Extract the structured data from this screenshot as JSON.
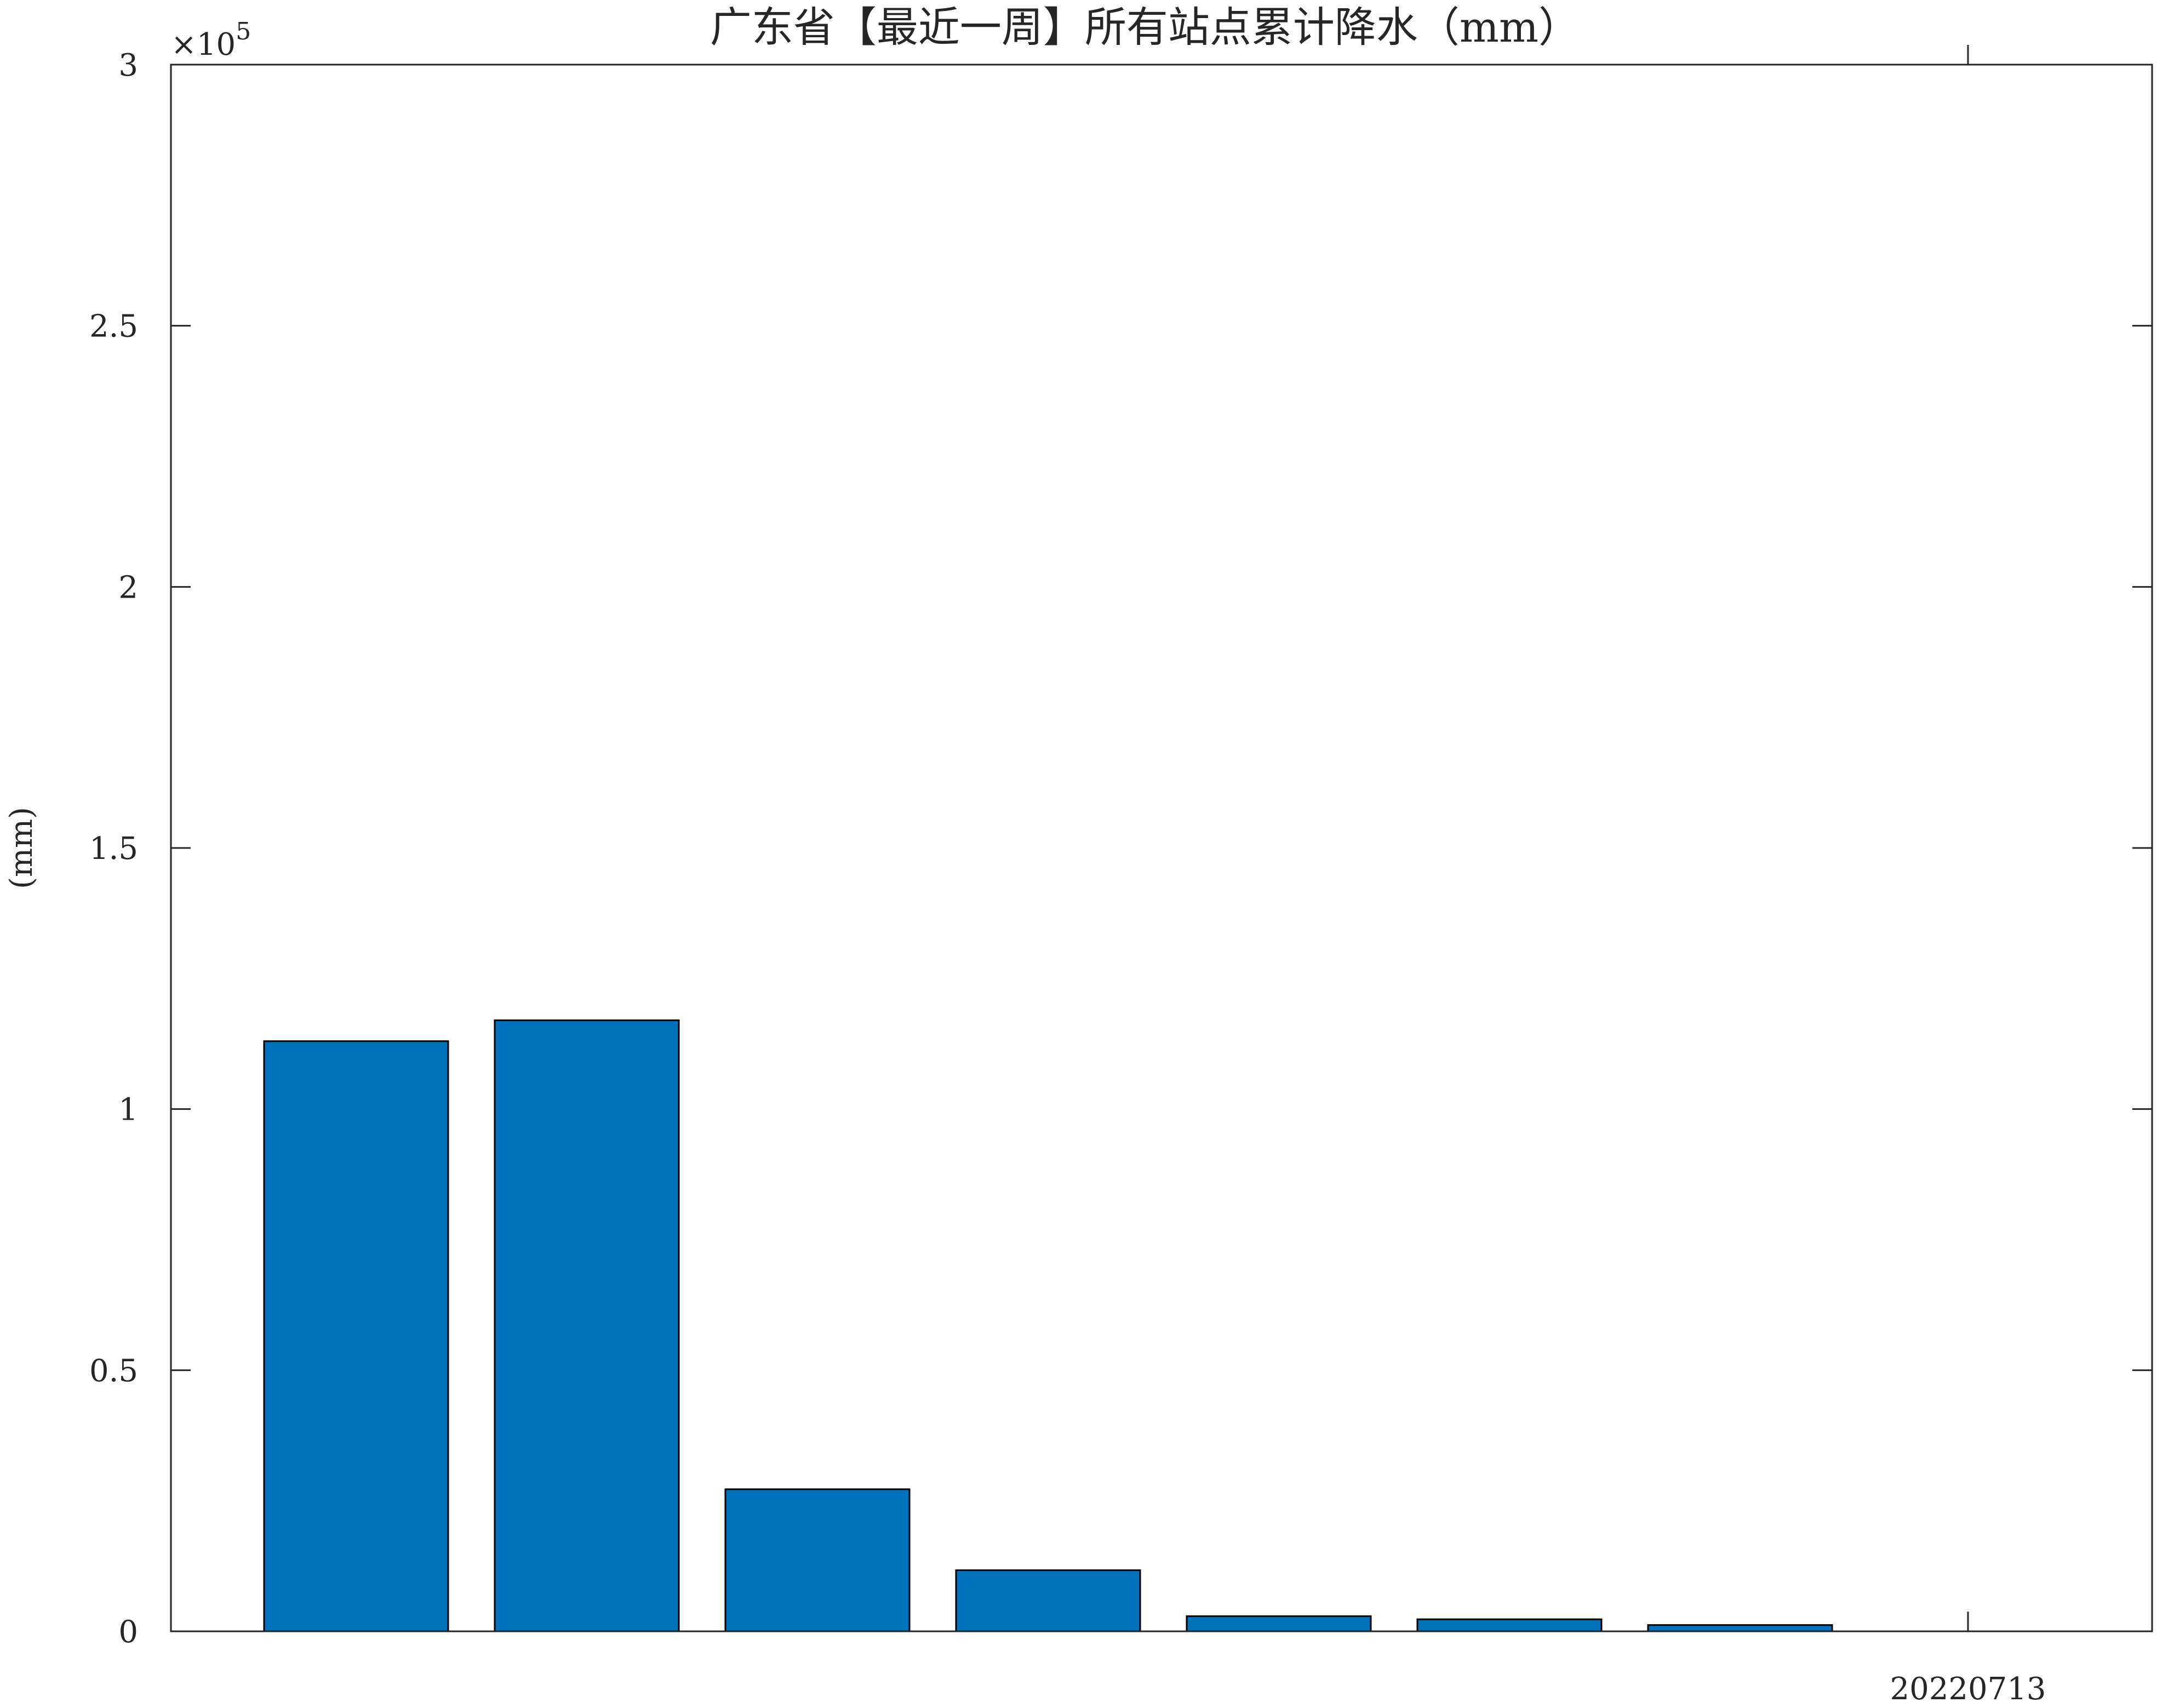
{
  "chart_data": {
    "type": "bar",
    "title": "广东省【最近一周】所有站点累计降水（mm）",
    "ylabel": "(mm)",
    "xlabel": "",
    "ylim": [
      0,
      300000
    ],
    "yticks": [
      0,
      50000,
      100000,
      150000,
      200000,
      250000,
      300000
    ],
    "ytick_labels": [
      "0",
      "0.5",
      "1",
      "1.5",
      "2",
      "2.5",
      "3"
    ],
    "y_multiplier": "×10",
    "y_multiplier_exp": "5",
    "x_tick_label": "20220713",
    "bar_color": "#0072BD",
    "grid": false,
    "series": [
      {
        "values": [
          113000,
          117000,
          27200,
          11700,
          2900,
          2300,
          1200,
          0
        ]
      }
    ]
  }
}
